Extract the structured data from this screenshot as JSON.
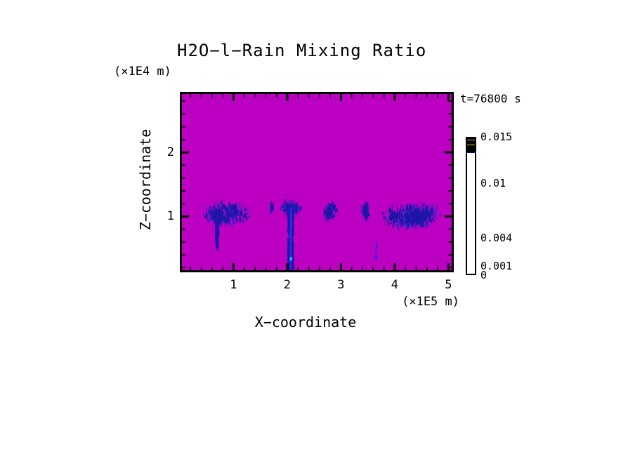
{
  "chart_data": {
    "type": "heatmap",
    "title": "H2O−l−Rain Mixing Ratio",
    "timestamp": "t=76800 s",
    "xlabel": "X−coordinate",
    "ylabel": "Z−coordinate",
    "x_unit": "(×1E5 m)",
    "y_unit": "(×1E4 m)",
    "axes": {
      "xlim": [
        0.04,
        5.06
      ],
      "zlim": [
        0.16,
        2.91
      ],
      "x_major_ticks": [
        1,
        2,
        3,
        4,
        5
      ],
      "z_major_ticks": [
        1,
        2
      ],
      "minor_tick_step": 0.2,
      "grid": false
    },
    "colorbar": {
      "max": 0.015,
      "levels": [
        0,
        0.001,
        0.002,
        0.003,
        0.004,
        0.006,
        0.008,
        0.01,
        0.012,
        0.014,
        0.015
      ],
      "colors_bottom_to_top": [
        "#0C0A96",
        "#1E32E6",
        "#00D2E6",
        "#00DC64",
        "#F0F000",
        "#F5BE00",
        "#F58C00",
        "#EB1414",
        "#F58C8C",
        "#F5BEBE"
      ],
      "labeled_values": [
        {
          "value": 0.015,
          "label": "0.015"
        },
        {
          "value": 0.01,
          "label": "0.01"
        },
        {
          "value": 0.004,
          "label": "0.004"
        },
        {
          "value": 0.001,
          "label": "0.001"
        },
        {
          "value": 0,
          "label": "0"
        }
      ]
    },
    "palette": {
      "background": "#BC00C2",
      "speckle_dark": "#1E14A8",
      "speckle_mid": "#2A2ADE",
      "speckle_edge": "#7A12C4",
      "fleck": "#00E0F0"
    },
    "features": [
      {
        "kind": "blob",
        "name": "cell-1-anvil",
        "cx": 0.87,
        "cz": 1.04,
        "rx": 0.48,
        "rz": 0.2,
        "count": 300,
        "seed": 11
      },
      {
        "kind": "blob",
        "name": "cell-1-core",
        "cx": 0.7,
        "cz": 1.02,
        "rx": 0.18,
        "rz": 0.16,
        "count": 210,
        "seed": 12
      },
      {
        "kind": "streak",
        "name": "cell-1-shaft",
        "x": 0.695,
        "w": 0.07,
        "z1": 0.98,
        "z2": 0.5,
        "count": 90,
        "taper": true,
        "seed": 13
      },
      {
        "kind": "blob",
        "name": "wisp",
        "cx": 1.71,
        "cz": 1.13,
        "rx": 0.04,
        "rz": 0.11,
        "count": 18,
        "seed": 14
      },
      {
        "kind": "blob",
        "name": "cell-2-fan",
        "cx": 2.07,
        "cz": 1.13,
        "rx": 0.21,
        "rz": 0.13,
        "count": 150,
        "seed": 15
      },
      {
        "kind": "streak",
        "name": "cell-2-shaft",
        "x": 2.065,
        "w": 0.1,
        "z1": 1.1,
        "z2": 0.17,
        "count": 280,
        "bright": true,
        "fleck_z": 0.34,
        "seed": 16
      },
      {
        "kind": "blob",
        "name": "cell-3",
        "cx": 2.79,
        "cz": 1.07,
        "rx": 0.13,
        "rz": 0.17,
        "count": 95,
        "slant": true,
        "seed": 17
      },
      {
        "kind": "blob",
        "name": "cell-4",
        "cx": 3.46,
        "cz": 1.08,
        "rx": 0.09,
        "rz": 0.15,
        "count": 75,
        "seed": 18
      },
      {
        "kind": "blob",
        "name": "cell-5-outer",
        "cx": 4.32,
        "cz": 1.01,
        "rx": 0.6,
        "rz": 0.21,
        "count": 500,
        "slant": true,
        "seed": 19
      },
      {
        "kind": "blob",
        "name": "cell-5-core",
        "cx": 4.42,
        "cz": 1.0,
        "rx": 0.36,
        "rz": 0.15,
        "count": 400,
        "slant": true,
        "seed": 20
      },
      {
        "kind": "streak",
        "name": "cell-4-virga",
        "x": 3.655,
        "w": 0.03,
        "z1": 0.62,
        "z2": 0.32,
        "count": 16,
        "faint": true,
        "seed": 21
      }
    ]
  }
}
